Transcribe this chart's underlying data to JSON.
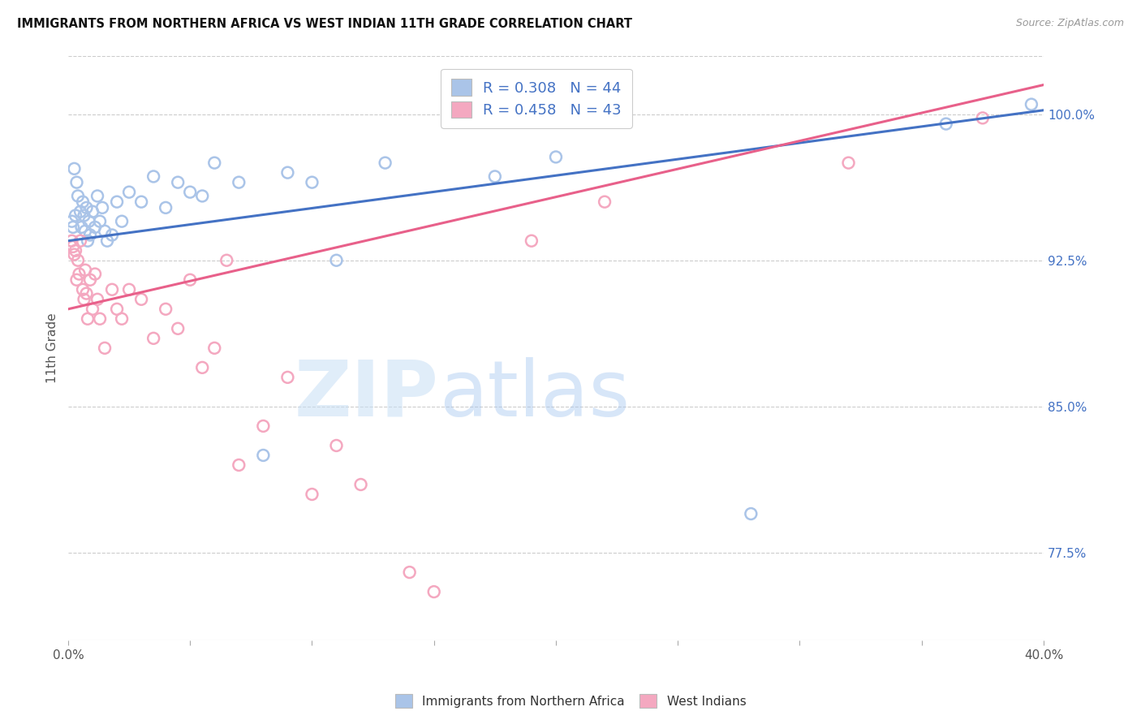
{
  "title": "IMMIGRANTS FROM NORTHERN AFRICA VS WEST INDIAN 11TH GRADE CORRELATION CHART",
  "source": "Source: ZipAtlas.com",
  "ylabel": "11th Grade",
  "yticks": [
    "77.5%",
    "85.0%",
    "92.5%",
    "100.0%"
  ],
  "ytick_vals": [
    77.5,
    85.0,
    92.5,
    100.0
  ],
  "xlim": [
    0.0,
    40.0
  ],
  "ylim": [
    73.0,
    103.0
  ],
  "legend1_label": "R = 0.308   N = 44",
  "legend2_label": "R = 0.458   N = 43",
  "legend_text_color": "#4472c4",
  "blue_color": "#aac4e8",
  "pink_color": "#f4a8c0",
  "blue_line_color": "#4472c4",
  "pink_line_color": "#e8608a",
  "blue_scatter": [
    [
      0.15,
      94.5
    ],
    [
      0.2,
      94.2
    ],
    [
      0.25,
      97.2
    ],
    [
      0.3,
      94.8
    ],
    [
      0.35,
      96.5
    ],
    [
      0.4,
      95.8
    ],
    [
      0.5,
      95.0
    ],
    [
      0.55,
      94.2
    ],
    [
      0.6,
      95.5
    ],
    [
      0.65,
      94.8
    ],
    [
      0.7,
      94.0
    ],
    [
      0.75,
      95.2
    ],
    [
      0.8,
      93.5
    ],
    [
      0.85,
      94.5
    ],
    [
      0.9,
      93.8
    ],
    [
      1.0,
      95.0
    ],
    [
      1.1,
      94.2
    ],
    [
      1.2,
      95.8
    ],
    [
      1.3,
      94.5
    ],
    [
      1.4,
      95.2
    ],
    [
      1.5,
      94.0
    ],
    [
      1.6,
      93.5
    ],
    [
      1.8,
      93.8
    ],
    [
      2.0,
      95.5
    ],
    [
      2.2,
      94.5
    ],
    [
      2.5,
      96.0
    ],
    [
      3.0,
      95.5
    ],
    [
      3.5,
      96.8
    ],
    [
      4.0,
      95.2
    ],
    [
      4.5,
      96.5
    ],
    [
      5.0,
      96.0
    ],
    [
      5.5,
      95.8
    ],
    [
      6.0,
      97.5
    ],
    [
      7.0,
      96.5
    ],
    [
      8.0,
      82.5
    ],
    [
      9.0,
      97.0
    ],
    [
      10.0,
      96.5
    ],
    [
      11.0,
      92.5
    ],
    [
      13.0,
      97.5
    ],
    [
      17.5,
      96.8
    ],
    [
      20.0,
      97.8
    ],
    [
      28.0,
      79.5
    ],
    [
      36.0,
      99.5
    ],
    [
      39.5,
      100.5
    ]
  ],
  "pink_scatter": [
    [
      0.15,
      93.5
    ],
    [
      0.2,
      93.2
    ],
    [
      0.25,
      92.8
    ],
    [
      0.3,
      93.0
    ],
    [
      0.35,
      91.5
    ],
    [
      0.4,
      92.5
    ],
    [
      0.45,
      91.8
    ],
    [
      0.5,
      93.5
    ],
    [
      0.6,
      91.0
    ],
    [
      0.65,
      90.5
    ],
    [
      0.7,
      92.0
    ],
    [
      0.75,
      90.8
    ],
    [
      0.8,
      89.5
    ],
    [
      0.9,
      91.5
    ],
    [
      1.0,
      90.0
    ],
    [
      1.1,
      91.8
    ],
    [
      1.2,
      90.5
    ],
    [
      1.3,
      89.5
    ],
    [
      1.5,
      88.0
    ],
    [
      1.8,
      91.0
    ],
    [
      2.0,
      90.0
    ],
    [
      2.2,
      89.5
    ],
    [
      2.5,
      91.0
    ],
    [
      3.0,
      90.5
    ],
    [
      3.5,
      88.5
    ],
    [
      4.0,
      90.0
    ],
    [
      4.5,
      89.0
    ],
    [
      5.0,
      91.5
    ],
    [
      5.5,
      87.0
    ],
    [
      6.0,
      88.0
    ],
    [
      6.5,
      92.5
    ],
    [
      7.0,
      82.0
    ],
    [
      8.0,
      84.0
    ],
    [
      9.0,
      86.5
    ],
    [
      10.0,
      80.5
    ],
    [
      11.0,
      83.0
    ],
    [
      12.0,
      81.0
    ],
    [
      14.0,
      76.5
    ],
    [
      15.0,
      75.5
    ],
    [
      19.0,
      93.5
    ],
    [
      22.0,
      95.5
    ],
    [
      32.0,
      97.5
    ],
    [
      37.5,
      99.8
    ]
  ],
  "blue_line": [
    0.0,
    40.0,
    93.5,
    100.2
  ],
  "pink_line": [
    0.0,
    40.0,
    90.0,
    101.5
  ]
}
